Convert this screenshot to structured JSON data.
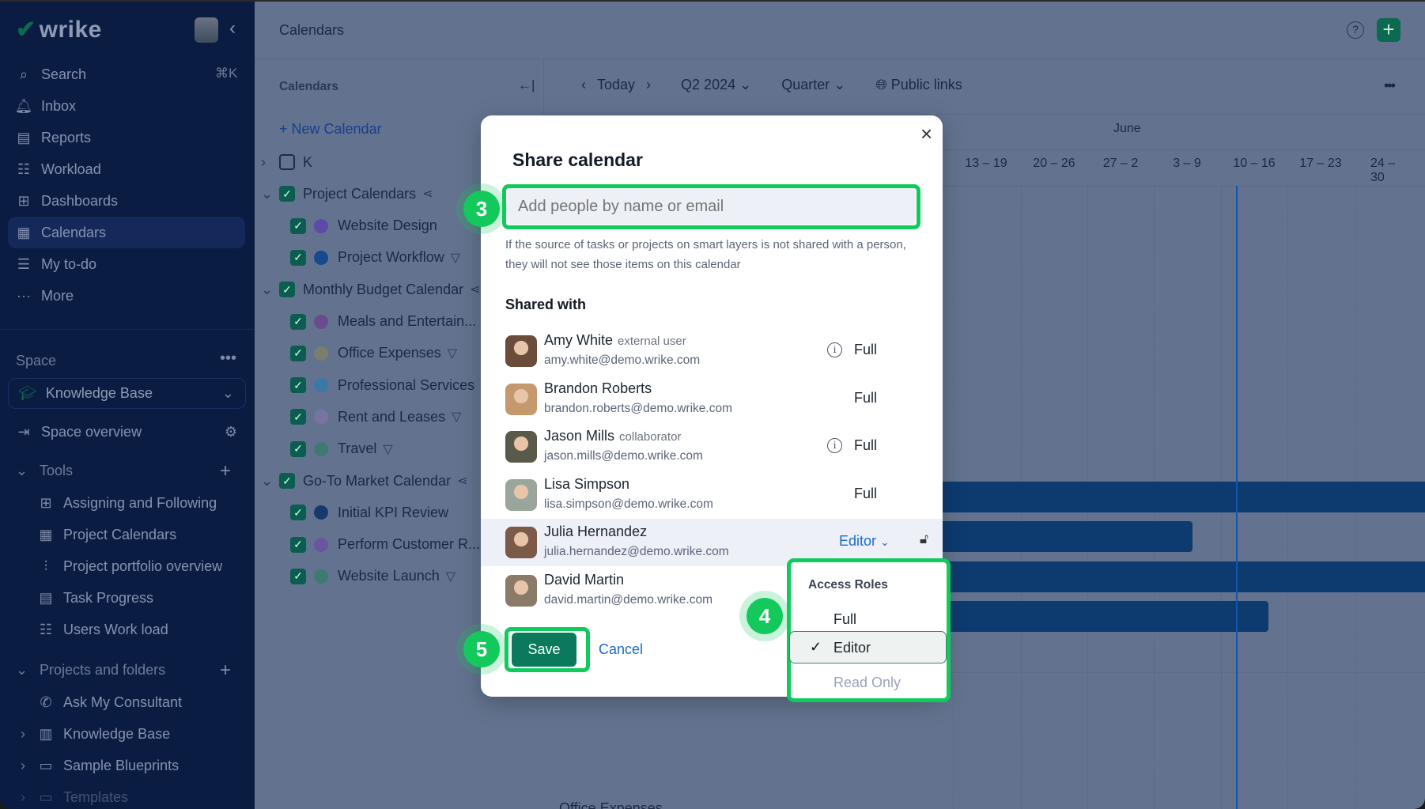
{
  "sidebar": {
    "logo": "wrike",
    "search_shortcut": "⌘K",
    "nav": [
      {
        "label": "Search",
        "icon": "search-icon"
      },
      {
        "label": "Inbox",
        "icon": "bell-icon"
      },
      {
        "label": "Reports",
        "icon": "report-icon"
      },
      {
        "label": "Workload",
        "icon": "workload-icon"
      },
      {
        "label": "Dashboards",
        "icon": "dashboard-icon"
      },
      {
        "label": "Calendars",
        "icon": "calendar-icon",
        "active": true
      },
      {
        "label": "My to-do",
        "icon": "todo-icon"
      },
      {
        "label": "More",
        "icon": "more-icon"
      }
    ],
    "space_label": "Space",
    "space_select": "Knowledge Base",
    "space_overview": "Space overview",
    "tools_label": "Tools",
    "tools": [
      {
        "label": "Assigning and Following",
        "icon": "dashboard-icon"
      },
      {
        "label": "Project Calendars",
        "icon": "calendar-icon"
      },
      {
        "label": "Project portfolio overview",
        "icon": "portfolio-icon"
      },
      {
        "label": "Task Progress",
        "icon": "report-icon"
      },
      {
        "label": "Users Work load",
        "icon": "workload-icon"
      }
    ],
    "projects_label": "Projects and folders",
    "projects": [
      {
        "label": "Ask My Consultant",
        "icon": "phone-icon",
        "expandable": false
      },
      {
        "label": "Knowledge Base",
        "icon": "clipboard-icon",
        "expandable": true
      },
      {
        "label": "Sample Blueprints",
        "icon": "folder-icon",
        "expandable": true
      },
      {
        "label": "Templates",
        "icon": "folder-icon",
        "expandable": true
      }
    ]
  },
  "header": {
    "title": "Calendars"
  },
  "calendars_panel": {
    "title": "Calendars",
    "new_calendar": "New Calendar",
    "items": [
      {
        "label": "K",
        "level": 0,
        "checked": false,
        "expanded": false
      },
      {
        "label": "Project Calendars",
        "level": 0,
        "checked": true,
        "expanded": true,
        "icon": "share-icon"
      },
      {
        "label": "Website Design",
        "level": 1,
        "checked": true,
        "color": "#5b4aa8"
      },
      {
        "label": "Project Workflow",
        "level": 1,
        "checked": true,
        "color": "#174a8c",
        "icon": "filter-icon"
      },
      {
        "label": "Monthly Budget Calendar",
        "level": 0,
        "checked": true,
        "expanded": true,
        "icon": "share-icon"
      },
      {
        "label": "Meals and Entertain...",
        "level": 1,
        "checked": true,
        "color": "#6b4a8e"
      },
      {
        "label": "Office Expenses",
        "level": 1,
        "checked": true,
        "color": "#7a7e6c",
        "icon": "filter-icon"
      },
      {
        "label": "Professional Services",
        "level": 1,
        "checked": true,
        "color": "#3a78a8"
      },
      {
        "label": "Rent and Leases",
        "level": 1,
        "checked": true,
        "color": "#77759f",
        "icon": "filter-icon"
      },
      {
        "label": "Travel",
        "level": 1,
        "checked": true,
        "color": "#3f7a72",
        "icon": "filter-icon"
      },
      {
        "label": "Go-To Market Calendar",
        "level": 0,
        "checked": true,
        "expanded": true,
        "icon": "share-icon"
      },
      {
        "label": "Initial KPI Review",
        "level": 1,
        "checked": true,
        "color": "#17396e"
      },
      {
        "label": "Perform Customer R...",
        "level": 1,
        "checked": true,
        "color": "#6b55a0"
      },
      {
        "label": "Website Launch",
        "level": 1,
        "checked": true,
        "color": "#3f7a72",
        "icon": "filter-icon"
      }
    ]
  },
  "toolbar": {
    "today": "Today",
    "period": "Q2 2024",
    "view": "Quarter",
    "public_links": "Public links"
  },
  "timeline": {
    "month": "June",
    "weeks": [
      "13 – 19",
      "20 – 26",
      "27 – 2",
      "3 – 9",
      "10 – 16",
      "17 – 23",
      "24 – 30"
    ],
    "bottom_label": "Office Expenses",
    "bar_color": "#0d3b70"
  },
  "modal": {
    "title": "Share calendar",
    "placeholder": "Add people by name or email",
    "note": "If the source of tasks or projects on smart layers is not shared with a person, they will not see those items on this calendar",
    "shared_with": "Shared with",
    "people": [
      {
        "name": "Amy White",
        "tag": "external user",
        "email": "amy.white@demo.wrike.com",
        "role": "Full",
        "info": true,
        "avatar": "#6b4b3a"
      },
      {
        "name": "Brandon Roberts",
        "tag": "",
        "email": "brandon.roberts@demo.wrike.com",
        "role": "Full",
        "info": false,
        "avatar": "#c49a6c"
      },
      {
        "name": "Jason Mills",
        "tag": "collaborator",
        "email": "jason.mills@demo.wrike.com",
        "role": "Full",
        "info": true,
        "avatar": "#5a5a4a"
      },
      {
        "name": "Lisa Simpson",
        "tag": "",
        "email": "lisa.simpson@demo.wrike.com",
        "role": "Full",
        "info": false,
        "avatar": "#9aa59c"
      },
      {
        "name": "Julia Hernandez",
        "tag": "",
        "email": "julia.hernandez@demo.wrike.com",
        "role": "Editor",
        "info": false,
        "avatar": "#7b5a48",
        "editing": true
      },
      {
        "name": "David Martin",
        "tag": "",
        "email": "david.martin@demo.wrike.com",
        "role": "",
        "info": false,
        "avatar": "#8a7a68"
      }
    ],
    "save": "Save",
    "cancel": "Cancel",
    "dropdown": {
      "header": "Access Roles",
      "options": [
        "Full",
        "Editor",
        "Read Only"
      ],
      "selected": "Editor",
      "disabled": "Read Only"
    },
    "steps": [
      "3",
      "4",
      "5"
    ],
    "accent": "#0b7a5c",
    "highlight": "#0fcb5d",
    "link": "#1a6bd1"
  }
}
